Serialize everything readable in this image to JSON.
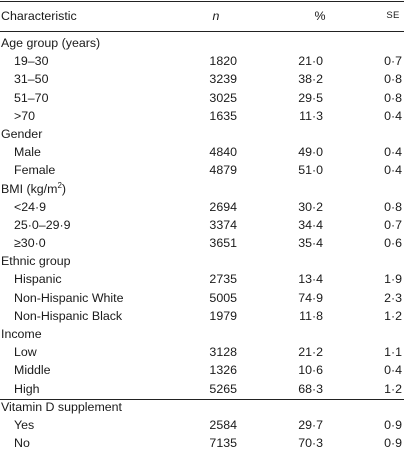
{
  "header": {
    "characteristic": "Characteristic",
    "n": "n",
    "pct": "%",
    "se": "SE"
  },
  "groups": [
    {
      "title": "Age group (years)",
      "rows": [
        {
          "label": "19–30",
          "n": "1820",
          "pct": "21·0",
          "se": "0·7"
        },
        {
          "label": "31–50",
          "n": "3239",
          "pct": "38·2",
          "se": "0·8"
        },
        {
          "label": "51–70",
          "n": "3025",
          "pct": "29·5",
          "se": "0·8"
        },
        {
          "label": ">70",
          "n": "1635",
          "pct": "11·3",
          "se": "0·4"
        }
      ]
    },
    {
      "title": "Gender",
      "rows": [
        {
          "label": "Male",
          "n": "4840",
          "pct": "49·0",
          "se": "0·4"
        },
        {
          "label": "Female",
          "n": "4879",
          "pct": "51·0",
          "se": "0·4"
        }
      ]
    },
    {
      "title": "BMI (kg/m",
      "title_sup": "2",
      "title_suffix": ")",
      "rows": [
        {
          "label": "<24·9",
          "n": "2694",
          "pct": "30·2",
          "se": "0·8"
        },
        {
          "label": "25·0–29·9",
          "n": "3374",
          "pct": "34·4",
          "se": "0·7"
        },
        {
          "label": "≥30·0",
          "n": "3651",
          "pct": "35·4",
          "se": "0·6"
        }
      ]
    },
    {
      "title": "Ethnic group",
      "rows": [
        {
          "label": "Hispanic",
          "n": "2735",
          "pct": "13·4",
          "se": "1·9"
        },
        {
          "label": "Non-Hispanic White",
          "n": "5005",
          "pct": "74·9",
          "se": "2·3"
        },
        {
          "label": "Non-Hispanic Black",
          "n": "1979",
          "pct": "11·8",
          "se": "1·2"
        }
      ]
    },
    {
      "title": "Income",
      "rows": [
        {
          "label": "Low",
          "n": "3128",
          "pct": "21·2",
          "se": "1·1"
        },
        {
          "label": "Middle",
          "n": "1326",
          "pct": "10·6",
          "se": "0·4"
        },
        {
          "label": "High",
          "n": "5265",
          "pct": "68·3",
          "se": "1·2"
        }
      ]
    },
    {
      "title": "Vitamin D supplement",
      "rows": [
        {
          "label": "Yes",
          "n": "2584",
          "pct": "29·7",
          "se": "0·9"
        },
        {
          "label": "No",
          "n": "7135",
          "pct": "70·3",
          "se": "0·9"
        }
      ]
    }
  ]
}
